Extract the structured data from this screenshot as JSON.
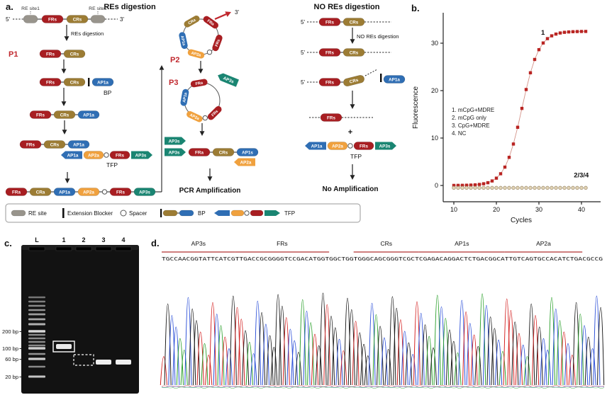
{
  "colors": {
    "red": "#a81e22",
    "tan": "#9c7c34",
    "blue": "#2f6eb4",
    "orange": "#f0a13e",
    "teal": "#1a8572",
    "gray": "#98948c",
    "accent_red": "#c0272d"
  },
  "panel_a": {
    "label": "a.",
    "header_res": "REs digestion",
    "header_nores": "NO REs digestion",
    "step_res": "REs digestion",
    "step_nores": "NO REs digestion",
    "p1": "P1",
    "p2": "P2",
    "p3": "P3",
    "bp": "BP",
    "tfp": "TFP",
    "re_site1": "RE site1",
    "re_site2": "RE site2",
    "five_prime": "5'",
    "three_prime": "3'",
    "plus": "+",
    "pcr_amplification": "PCR Amplification",
    "no_amplification": "No Amplification",
    "capsules": {
      "FRs": "FRs",
      "CRs": "CRs",
      "FRa": "FRa",
      "CRa": "CRa",
      "AP1a": "AP1a",
      "AP2a": "AP2a",
      "AP1s": "AP1s",
      "AP3s": "AP3s"
    },
    "legend": {
      "re_site": "RE site",
      "extension_blocker": "Extension Blocker",
      "spacer": "Spacer",
      "bp": "BP",
      "tfp": "TFP"
    }
  },
  "panel_b": {
    "label": "b.",
    "chart_data": {
      "type": "line",
      "xlabel": "Cycles",
      "ylabel": "Fluorescence",
      "xlim": [
        9,
        42
      ],
      "ylim": [
        -3,
        34
      ],
      "xticks": [
        10,
        20,
        30,
        40
      ],
      "yticks": [
        0,
        10,
        20,
        30
      ],
      "grid": false,
      "legend_position": "inside-left",
      "legend_lines": [
        "1. mCpG+MDRE",
        "2. mCpG only",
        "3. CpG+MDRE",
        "4. NC"
      ],
      "annotations": [
        {
          "text": "1",
          "x": 30.5,
          "y": 31.8
        },
        {
          "text": "2/3/4",
          "x": 38.2,
          "y": 1.7
        }
      ],
      "x": [
        10,
        11,
        12,
        13,
        14,
        15,
        16,
        17,
        18,
        19,
        20,
        21,
        22,
        23,
        24,
        25,
        26,
        27,
        28,
        29,
        30,
        31,
        32,
        33,
        34,
        35,
        36,
        37,
        38,
        39,
        40,
        41
      ],
      "series": [
        {
          "name": "mCpG+MDRE",
          "marker": "square",
          "color": "#b92422",
          "y": [
            0.01,
            0.02,
            0.03,
            0.05,
            0.08,
            0.13,
            0.22,
            0.36,
            0.58,
            0.95,
            1.54,
            2.47,
            3.87,
            5.93,
            8.74,
            12.27,
            16.25,
            20.23,
            23.76,
            26.57,
            28.63,
            30.04,
            30.96,
            31.55,
            31.92,
            32.15,
            32.29,
            32.37,
            32.42,
            32.45,
            32.47,
            32.48
          ]
        },
        {
          "name": "mCpG only / CpG+MDRE / NC",
          "marker": "circle",
          "color": "#e2d4b6",
          "y": [
            -0.5,
            -0.5,
            -0.5,
            -0.5,
            -0.5,
            -0.5,
            -0.5,
            -0.5,
            -0.5,
            -0.5,
            -0.5,
            -0.5,
            -0.5,
            -0.5,
            -0.5,
            -0.5,
            -0.5,
            -0.5,
            -0.5,
            -0.5,
            -0.5,
            -0.5,
            -0.5,
            -0.5,
            -0.5,
            -0.5,
            -0.5,
            -0.5,
            -0.5,
            -0.5,
            -0.5,
            -0.5
          ]
        }
      ]
    }
  },
  "panel_c": {
    "label": "c.",
    "lane_labels": [
      "L",
      "1",
      "2",
      "3",
      "4"
    ],
    "size_labels": [
      "200 bp",
      "100 bp",
      "60 bp",
      "20 bp"
    ]
  },
  "panel_d": {
    "label": "d.",
    "sequence": "TGCCAACGGTATTCATCGTTGACCGCGGGGTCCGACATGGTGGCTGGTGGGCAGCGGGTCGCTCGAGACAGGACTCTGACGGCATTGTCAGTGCCACATCTGACGCCG",
    "regions": [
      {
        "name": "AP3s",
        "start": 0,
        "end": 18
      },
      {
        "name": "FRs",
        "start": 18,
        "end": 41
      },
      {
        "name": "CRs",
        "start": 47,
        "end": 63
      },
      {
        "name": "AP1s",
        "start": 63,
        "end": 84
      },
      {
        "name": "AP2a",
        "start": 84,
        "end": 103
      }
    ],
    "base_colors": {
      "A": "#2ba02b",
      "C": "#2b4fd8",
      "G": "#1a1a1a",
      "T": "#d42020"
    }
  }
}
